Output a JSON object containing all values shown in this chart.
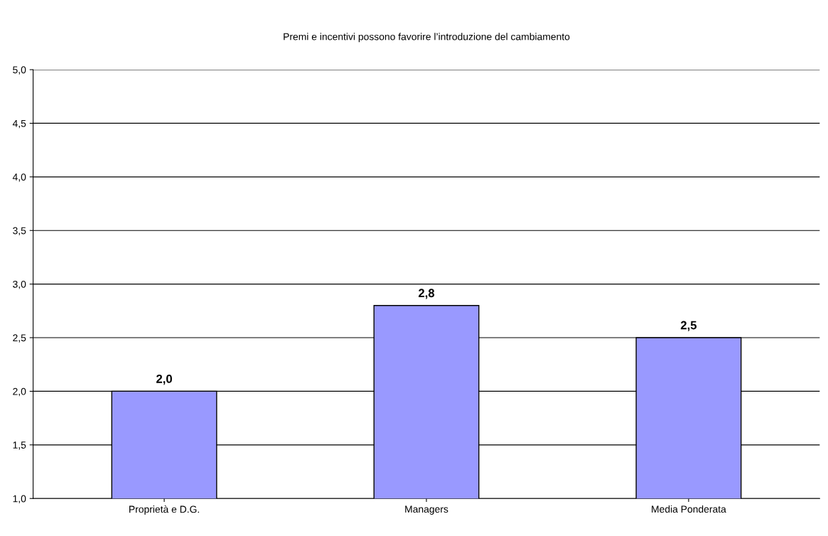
{
  "chart_data": {
    "type": "bar",
    "title": "Premi e incentivi possono favorire l’introduzione del cambiamento",
    "categories": [
      "Proprietà e D.G.",
      "Managers",
      "Media Ponderata"
    ],
    "values": [
      2.0,
      2.8,
      2.5
    ],
    "value_labels": [
      "2,0",
      "2,8",
      "2,5"
    ],
    "color": "#9999ff",
    "ylim": [
      1.0,
      5.0
    ],
    "yticks": [
      {
        "value": 1.0,
        "label": "1,0"
      },
      {
        "value": 1.5,
        "label": "1,5"
      },
      {
        "value": 2.0,
        "label": "2,0"
      },
      {
        "value": 2.5,
        "label": "2,5"
      },
      {
        "value": 3.0,
        "label": "3,0"
      },
      {
        "value": 3.5,
        "label": "3,5"
      },
      {
        "value": 4.0,
        "label": "4,0"
      },
      {
        "value": 4.5,
        "label": "4,5"
      },
      {
        "value": 5.0,
        "label": "5,0"
      }
    ],
    "grid": "y",
    "legend": false
  }
}
